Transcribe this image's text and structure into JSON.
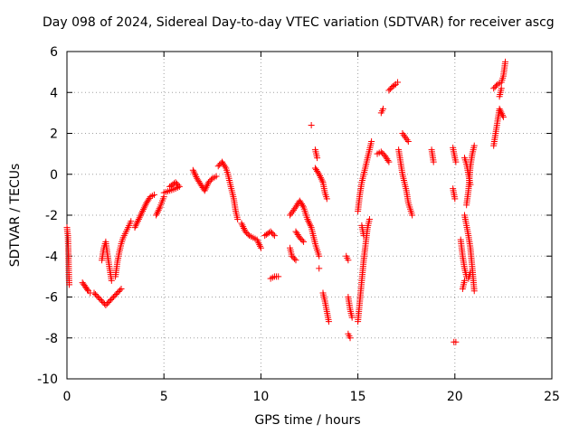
{
  "chart_data": {
    "type": "scatter",
    "title": "Day 098 of 2024, Sidereal Day-to-day VTEC variation (SDTVAR) for receiver ascg",
    "xlabel": "GPS time / hours",
    "ylabel": "SDTVAR / TECUs",
    "xlim": [
      0,
      25
    ],
    "ylim": [
      -10,
      6
    ],
    "xticks": [
      0,
      5,
      10,
      15,
      20,
      25
    ],
    "yticks": [
      -10,
      -8,
      -6,
      -4,
      -2,
      0,
      2,
      4,
      6
    ],
    "grid": true,
    "marker": "+",
    "color": "#ff0000",
    "series": [
      {
        "name": "SDTVAR",
        "segments": [
          [
            [
              0.0,
              -2.6
            ],
            [
              0.05,
              -3.0
            ],
            [
              0.08,
              -4.0
            ],
            [
              0.1,
              -5.0
            ],
            [
              0.12,
              -5.4
            ]
          ],
          [
            [
              0.8,
              -5.3
            ],
            [
              0.95,
              -5.5
            ],
            [
              1.1,
              -5.7
            ],
            [
              1.2,
              -5.8
            ]
          ],
          [
            [
              1.4,
              -5.8
            ],
            [
              1.6,
              -6.0
            ],
            [
              1.8,
              -6.2
            ],
            [
              2.0,
              -6.4
            ],
            [
              2.2,
              -6.2
            ],
            [
              2.4,
              -6.0
            ],
            [
              2.6,
              -5.8
            ],
            [
              2.8,
              -5.6
            ]
          ],
          [
            [
              1.8,
              -4.2
            ],
            [
              1.9,
              -3.6
            ],
            [
              2.0,
              -3.3
            ],
            [
              2.1,
              -4.0
            ],
            [
              2.2,
              -4.6
            ],
            [
              2.3,
              -5.2
            ]
          ],
          [
            [
              2.5,
              -5.0
            ],
            [
              2.6,
              -4.3
            ],
            [
              2.7,
              -3.8
            ],
            [
              2.8,
              -3.4
            ],
            [
              2.9,
              -3.1
            ],
            [
              3.0,
              -2.9
            ],
            [
              3.1,
              -2.7
            ],
            [
              3.2,
              -2.5
            ],
            [
              3.3,
              -2.3
            ]
          ],
          [
            [
              3.5,
              -2.6
            ],
            [
              3.7,
              -2.2
            ],
            [
              3.9,
              -1.8
            ],
            [
              4.1,
              -1.4
            ],
            [
              4.3,
              -1.1
            ],
            [
              4.5,
              -1.0
            ]
          ],
          [
            [
              4.6,
              -2.0
            ],
            [
              4.8,
              -1.6
            ],
            [
              5.0,
              -1.1
            ]
          ],
          [
            [
              5.0,
              -0.9
            ],
            [
              5.3,
              -0.8
            ],
            [
              5.6,
              -0.7
            ],
            [
              5.8,
              -0.6
            ],
            [
              5.6,
              -0.4
            ],
            [
              5.3,
              -0.6
            ]
          ],
          [
            [
              6.5,
              0.2
            ],
            [
              6.7,
              -0.2
            ],
            [
              6.9,
              -0.5
            ],
            [
              7.1,
              -0.8
            ],
            [
              7.3,
              -0.4
            ],
            [
              7.5,
              -0.2
            ],
            [
              7.7,
              -0.1
            ]
          ],
          [
            [
              7.8,
              0.4
            ],
            [
              8.0,
              0.6
            ],
            [
              8.2,
              0.3
            ],
            [
              8.3,
              0.0
            ],
            [
              8.4,
              -0.4
            ],
            [
              8.5,
              -0.8
            ],
            [
              8.6,
              -1.2
            ],
            [
              8.7,
              -1.8
            ],
            [
              8.8,
              -2.2
            ]
          ],
          [
            [
              9.0,
              -2.4
            ],
            [
              9.2,
              -2.8
            ],
            [
              9.4,
              -3.0
            ],
            [
              9.6,
              -3.1
            ],
            [
              9.8,
              -3.2
            ],
            [
              10.0,
              -3.6
            ]
          ],
          [
            [
              10.2,
              -3.0
            ],
            [
              10.5,
              -2.8
            ],
            [
              10.7,
              -3.0
            ]
          ],
          [
            [
              10.5,
              -5.1
            ],
            [
              10.7,
              -5.0
            ],
            [
              10.9,
              -5.0
            ]
          ],
          [
            [
              11.5,
              -3.6
            ],
            [
              11.6,
              -4.0
            ],
            [
              11.8,
              -4.2
            ]
          ],
          [
            [
              11.5,
              -2.0
            ],
            [
              11.8,
              -1.6
            ],
            [
              12.0,
              -1.3
            ],
            [
              12.2,
              -1.6
            ],
            [
              12.4,
              -2.2
            ],
            [
              12.6,
              -2.6
            ],
            [
              12.8,
              -3.4
            ],
            [
              13.0,
              -4.0
            ]
          ],
          [
            [
              11.8,
              -2.8
            ],
            [
              12.0,
              -3.1
            ],
            [
              12.2,
              -3.3
            ]
          ],
          [
            [
              12.6,
              2.4
            ]
          ],
          [
            [
              12.8,
              1.2
            ],
            [
              12.9,
              0.8
            ]
          ],
          [
            [
              12.8,
              0.3
            ],
            [
              13.0,
              0.0
            ],
            [
              13.2,
              -0.4
            ],
            [
              13.3,
              -0.9
            ],
            [
              13.4,
              -1.2
            ]
          ],
          [
            [
              13.0,
              -4.6
            ]
          ],
          [
            [
              13.2,
              -5.8
            ],
            [
              13.3,
              -6.2
            ],
            [
              13.4,
              -6.7
            ],
            [
              13.5,
              -7.2
            ]
          ],
          [
            [
              14.4,
              -4.0
            ],
            [
              14.5,
              -4.2
            ]
          ],
          [
            [
              14.5,
              -6.0
            ],
            [
              14.6,
              -6.6
            ],
            [
              14.7,
              -7.0
            ]
          ],
          [
            [
              14.5,
              -7.8
            ],
            [
              14.6,
              -8.0
            ]
          ],
          [
            [
              15.0,
              -7.2
            ],
            [
              15.1,
              -6.2
            ],
            [
              15.2,
              -5.2
            ],
            [
              15.3,
              -4.2
            ],
            [
              15.4,
              -3.4
            ],
            [
              15.5,
              -2.6
            ],
            [
              15.6,
              -2.2
            ]
          ],
          [
            [
              15.0,
              -1.8
            ],
            [
              15.1,
              -1.0
            ],
            [
              15.2,
              -0.4
            ],
            [
              15.3,
              0.0
            ],
            [
              15.4,
              0.4
            ],
            [
              15.5,
              0.8
            ],
            [
              15.6,
              1.2
            ],
            [
              15.7,
              1.6
            ]
          ],
          [
            [
              15.2,
              -2.5
            ],
            [
              15.3,
              -3.0
            ]
          ],
          [
            [
              16.0,
              1.0
            ],
            [
              16.2,
              1.1
            ],
            [
              16.4,
              0.9
            ],
            [
              16.6,
              0.6
            ]
          ],
          [
            [
              16.2,
              3.0
            ],
            [
              16.3,
              3.2
            ]
          ],
          [
            [
              16.6,
              4.1
            ],
            [
              16.8,
              4.3
            ],
            [
              16.95,
              4.4
            ],
            [
              17.05,
              4.5
            ]
          ],
          [
            [
              17.1,
              1.2
            ],
            [
              17.3,
              0.0
            ],
            [
              17.5,
              -0.8
            ],
            [
              17.6,
              -1.4
            ],
            [
              17.8,
              -2.0
            ]
          ],
          [
            [
              17.3,
              2.0
            ],
            [
              17.6,
              1.6
            ]
          ],
          [
            [
              18.8,
              1.2
            ],
            [
              18.9,
              0.6
            ]
          ],
          [
            [
              19.9,
              -0.7
            ],
            [
              20.0,
              -1.2
            ]
          ],
          [
            [
              19.9,
              1.3
            ],
            [
              20.0,
              0.8
            ],
            [
              20.05,
              0.6
            ]
          ],
          [
            [
              19.95,
              -8.2
            ],
            [
              20.05,
              -8.2
            ]
          ],
          [
            [
              20.3,
              -3.2
            ],
            [
              20.4,
              -4.0
            ],
            [
              20.5,
              -4.6
            ],
            [
              20.6,
              -5.0
            ],
            [
              20.7,
              -5.1
            ],
            [
              20.8,
              -4.8
            ]
          ],
          [
            [
              20.4,
              -5.6
            ],
            [
              20.5,
              -5.2
            ]
          ],
          [
            [
              20.5,
              0.8
            ],
            [
              20.6,
              0.5
            ],
            [
              20.7,
              0.0
            ],
            [
              20.8,
              -0.5
            ]
          ],
          [
            [
              20.5,
              -2.0
            ],
            [
              20.6,
              -2.5
            ],
            [
              20.7,
              -3.0
            ],
            [
              20.8,
              -3.6
            ],
            [
              20.9,
              -4.6
            ],
            [
              21.0,
              -5.7
            ]
          ],
          [
            [
              20.6,
              -1.5
            ],
            [
              20.7,
              -0.8
            ],
            [
              20.8,
              0.4
            ],
            [
              20.9,
              1.0
            ],
            [
              21.0,
              1.4
            ]
          ],
          [
            [
              22.0,
              1.4
            ],
            [
              22.1,
              2.0
            ],
            [
              22.2,
              2.6
            ],
            [
              22.3,
              3.2
            ],
            [
              22.5,
              2.8
            ]
          ],
          [
            [
              22.0,
              4.2
            ],
            [
              22.2,
              4.4
            ],
            [
              22.4,
              4.5
            ],
            [
              22.5,
              4.8
            ],
            [
              22.6,
              5.5
            ]
          ],
          [
            [
              22.3,
              3.8
            ],
            [
              22.4,
              4.2
            ]
          ]
        ]
      }
    ]
  }
}
